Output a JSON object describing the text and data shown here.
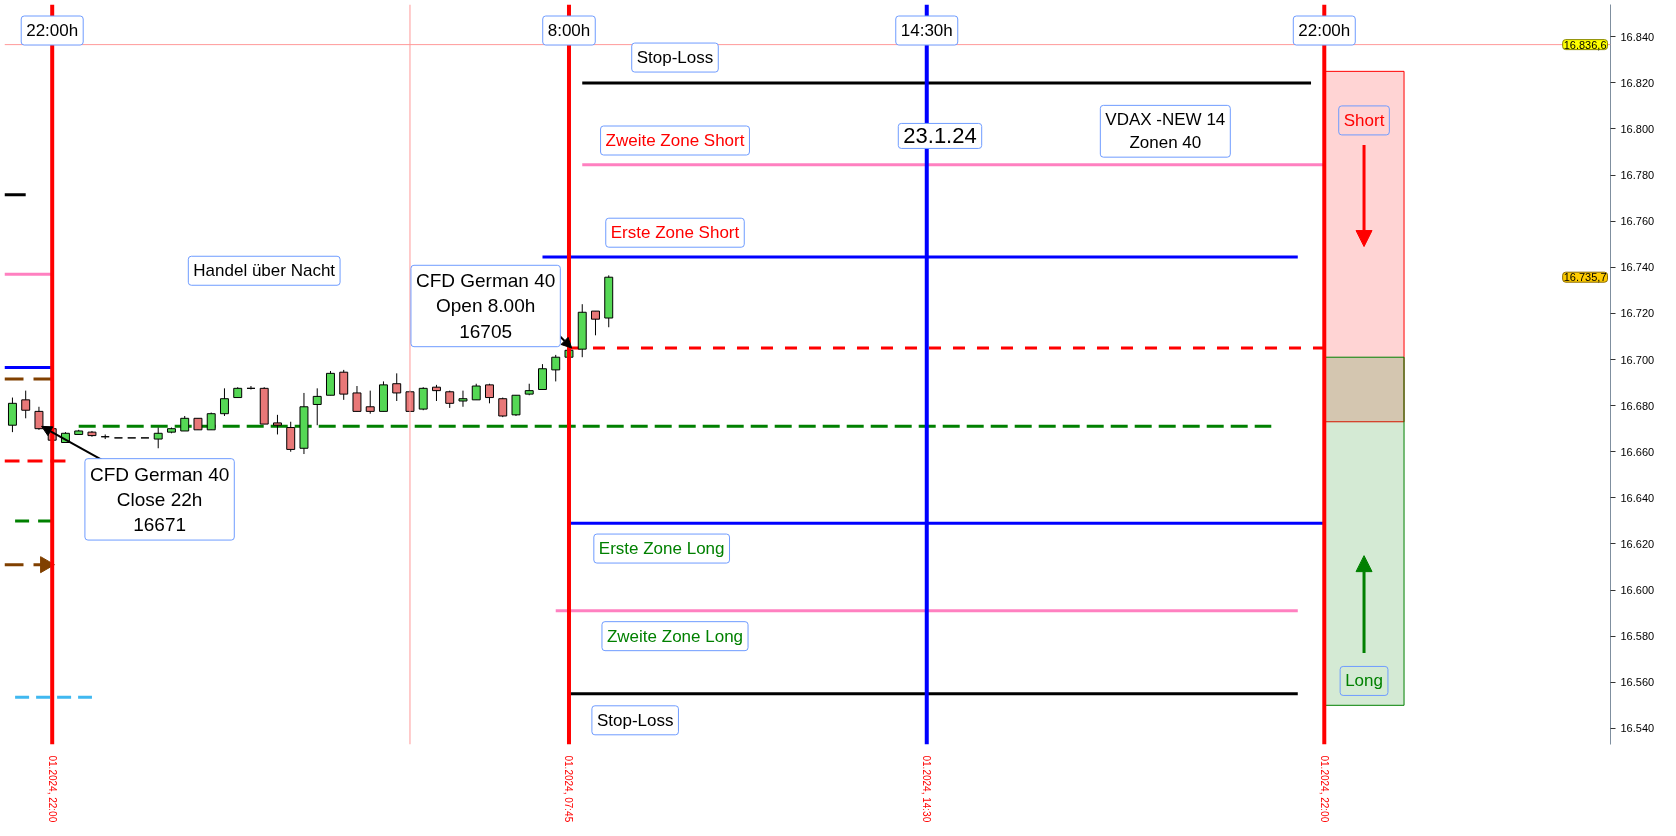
{
  "chart_data": {
    "type": "candlestick",
    "x": [
      "2024-01-22T21:15",
      "2024-01-22T21:30",
      "2024-01-22T21:45",
      "2024-01-22T22:00",
      "2024-01-22T22:15",
      "2024-01-22T22:30",
      "2024-01-22T22:45",
      "2024-01-22T23:00",
      "2024-01-22T23:15",
      "2024-01-22T23:30",
      "2024-01-22T23:45",
      "2024-01-23T00:00",
      "2024-01-23T00:15",
      "2024-01-23T00:30",
      "2024-01-23T00:45",
      "2024-01-23T01:00",
      "2024-01-23T01:15",
      "2024-01-23T01:30",
      "2024-01-23T01:45",
      "2024-01-23T02:00",
      "2024-01-23T02:15",
      "2024-01-23T02:30",
      "2024-01-23T02:45",
      "2024-01-23T03:00",
      "2024-01-23T03:15",
      "2024-01-23T03:30",
      "2024-01-23T03:45",
      "2024-01-23T04:00",
      "2024-01-23T04:15",
      "2024-01-23T04:30",
      "2024-01-23T04:45",
      "2024-01-23T05:00",
      "2024-01-23T05:15",
      "2024-01-23T05:30",
      "2024-01-23T05:45",
      "2024-01-23T06:00",
      "2024-01-23T06:15",
      "2024-01-23T06:30",
      "2024-01-23T06:45",
      "2024-01-23T07:00",
      "2024-01-23T07:15",
      "2024-01-23T07:30",
      "2024-01-23T07:45",
      "2024-01-23T08:00",
      "2024-01-23T08:15",
      "2024-01-23T08:30"
    ],
    "ohlc": [
      [
        16671.5,
        16683.5,
        16668.5,
        16681
      ],
      [
        16682.5,
        16686.5,
        16674.5,
        16678
      ],
      [
        16677.5,
        16679.5,
        16669.5,
        16670
      ],
      [
        16670,
        16670.5,
        16665,
        16665
      ],
      [
        16664,
        16668.5,
        16664,
        16668
      ],
      [
        16667.5,
        16669.5,
        16667.5,
        16669
      ],
      [
        16668.5,
        16669,
        16666.5,
        16667
      ],
      [
        16666.5,
        16667.5,
        16665.5,
        16666.5
      ],
      [
        16666,
        16666,
        16666,
        16666
      ],
      [
        16666,
        16666,
        16666,
        16666
      ],
      [
        16666,
        16666,
        16666,
        16666
      ],
      [
        16665.5,
        16670.5,
        16661.5,
        16668
      ],
      [
        16668.5,
        16670.5,
        16668,
        16670
      ],
      [
        16669,
        16675.5,
        16669,
        16674.5
      ],
      [
        16674.5,
        16674.5,
        16669.5,
        16669.5
      ],
      [
        16669.5,
        16677,
        16669.5,
        16676.5
      ],
      [
        16676.5,
        16687.5,
        16675.5,
        16683
      ],
      [
        16683.5,
        16688,
        16683.5,
        16687.5
      ],
      [
        16687.5,
        16688.5,
        16687,
        16687.5
      ],
      [
        16687.5,
        16688,
        16672,
        16672
      ],
      [
        16672.5,
        16676,
        16667.5,
        16671.5
      ],
      [
        16670.5,
        16673,
        16660,
        16661
      ],
      [
        16661.5,
        16685.5,
        16659,
        16679.5
      ],
      [
        16680.5,
        16687.5,
        16671.5,
        16684
      ],
      [
        16684.5,
        16695,
        16684.5,
        16694
      ],
      [
        16694.5,
        16695.5,
        16682.5,
        16685
      ],
      [
        16685.5,
        16688.5,
        16677.5,
        16677.5
      ],
      [
        16679.5,
        16686.5,
        16676.5,
        16677.5
      ],
      [
        16677.5,
        16690.5,
        16677.5,
        16689
      ],
      [
        16689.5,
        16694,
        16682,
        16685.5
      ],
      [
        16686,
        16686.5,
        16677.5,
        16677.5
      ],
      [
        16678.5,
        16688,
        16678,
        16687.5
      ],
      [
        16688,
        16689,
        16682,
        16686.5
      ],
      [
        16686,
        16686.5,
        16679,
        16681
      ],
      [
        16682,
        16686.5,
        16679.5,
        16683
      ],
      [
        16682.5,
        16689.5,
        16682.5,
        16688.5
      ],
      [
        16689,
        16689.5,
        16681,
        16683.5
      ],
      [
        16683,
        16683.5,
        16675,
        16675.5
      ],
      [
        16676,
        16684.5,
        16675.5,
        16684.5
      ],
      [
        16685,
        16689.5,
        16684.5,
        16686.5
      ],
      [
        16687,
        16698,
        16687,
        16696
      ],
      [
        16695.5,
        16702,
        16690.5,
        16701
      ],
      [
        16701,
        16704.5,
        16701,
        16704
      ],
      [
        16704.5,
        16724,
        16701,
        16720.5
      ],
      [
        16721,
        16721,
        16710.5,
        16717.5
      ],
      [
        16718,
        16736.5,
        16714,
        16735.7
      ]
    ],
    "colors": [
      "#55d855",
      "#e87878",
      "#e87878",
      "#e87878",
      "#55d855",
      "#55d855",
      "#e87878",
      "#000000",
      "#000000",
      "#000000",
      "#000000",
      "#55d855",
      "#55d855",
      "#55d855",
      "#e87878",
      "#55d855",
      "#55d855",
      "#55d855",
      "#000000",
      "#e87878",
      "#e87878",
      "#e87878",
      "#55d855",
      "#55d855",
      "#55d855",
      "#e87878",
      "#e87878",
      "#e87878",
      "#55d855",
      "#e87878",
      "#e87878",
      "#55d855",
      "#e87878",
      "#e87878",
      "#55d855",
      "#55d855",
      "#e87878",
      "#e87878",
      "#55d855",
      "#55d855",
      "#55d855",
      "#55d855",
      "#55d855",
      "#55d855",
      "#e87878",
      "#55d855"
    ],
    "xlim": [
      "2024-01-22T21:06",
      "2024-01-24T03:24"
    ],
    "ylim": [
      16533,
      16854
    ],
    "xticks": [
      {
        "value": "2024-01-22T22:00",
        "label": "01.2024, 22:00"
      },
      {
        "value": "2024-01-23T07:45",
        "label": "01.2024, 07:45"
      },
      {
        "value": "2024-01-23T14:30",
        "label": "01.2024, 14:30"
      },
      {
        "value": "2024-01-23T22:00",
        "label": "01.2024, 22:00"
      }
    ],
    "yticks": [
      {
        "value": 16540,
        "label": "16.540"
      },
      {
        "value": 16560,
        "label": "16.560"
      },
      {
        "value": 16580,
        "label": "16.580"
      },
      {
        "value": 16600,
        "label": "16.600"
      },
      {
        "value": 16620,
        "label": "16.620"
      },
      {
        "value": 16640,
        "label": "16.640"
      },
      {
        "value": 16660,
        "label": "16.660"
      },
      {
        "value": 16680,
        "label": "16.680"
      },
      {
        "value": 16700,
        "label": "16.700"
      },
      {
        "value": 16720,
        "label": "16.720"
      },
      {
        "value": 16740,
        "label": "16.740"
      },
      {
        "value": 16760,
        "label": "16.760"
      },
      {
        "value": 16780,
        "label": "16.780"
      },
      {
        "value": 16800,
        "label": "16.800"
      },
      {
        "value": 16820,
        "label": "16.820"
      },
      {
        "value": 16840,
        "label": "16.840"
      }
    ],
    "grid": false,
    "series": [
      {
        "type": "bar",
        "name": "Short",
        "x": [
          "2024-01-23T22:45"
        ],
        "values": [
          152
        ],
        "base": [
          16673
        ],
        "color": "#ff0000"
      },
      {
        "type": "bar",
        "name": "Long",
        "x": [
          "2024-01-23T22:45"
        ],
        "values": [
          151
        ],
        "base": [
          16550
        ],
        "color": "#008000"
      },
      {
        "type": "line",
        "x": [
          "2024-01-23T08:00",
          "2024-01-23T21:45"
        ],
        "values": [
          16820,
          16820
        ],
        "color": "#000000"
      },
      {
        "type": "line",
        "x": [
          "2024-01-23T08:00",
          "2024-01-23T22:00"
        ],
        "values": [
          16784.5,
          16784.5
        ],
        "color": "#ff80c0"
      },
      {
        "type": "line",
        "x": [
          "2024-01-23T07:15",
          "2024-01-23T21:30"
        ],
        "values": [
          16744.5,
          16744.5
        ],
        "color": "#0000ff"
      },
      {
        "type": "line",
        "x": [
          "2024-01-23T07:45",
          "2024-01-23T22:00"
        ],
        "values": [
          16705,
          16705
        ],
        "color": "#ff0000",
        "line_style": "dashed"
      },
      {
        "type": "line",
        "x": [
          "2024-01-22T22:30",
          "2024-01-23T21:00"
        ],
        "values": [
          16671,
          16671
        ],
        "color": "#008000",
        "line_style": "dashed"
      },
      {
        "type": "line",
        "x": [
          "2024-01-23T07:45",
          "2024-01-23T22:00"
        ],
        "values": [
          16629,
          16629
        ],
        "color": "#0000ff"
      },
      {
        "type": "line",
        "x": [
          "2024-01-23T07:30",
          "2024-01-23T21:30"
        ],
        "values": [
          16591,
          16591
        ],
        "color": "#ff80c0"
      },
      {
        "type": "line",
        "x": [
          "2024-01-23T07:45",
          "2024-01-23T21:30"
        ],
        "values": [
          16555,
          16555
        ],
        "color": "#000000"
      },
      {
        "type": "line",
        "x": [
          "2024-01-22T21:06",
          "2024-01-22T21:30"
        ],
        "values": [
          16771.5,
          16771.5
        ],
        "color": "#000000"
      },
      {
        "type": "line",
        "x": [
          "2024-01-22T21:06",
          "2024-01-22T22:00"
        ],
        "values": [
          16737,
          16737
        ],
        "color": "#ff80c0"
      },
      {
        "type": "line",
        "x": [
          "2024-01-22T21:06",
          "2024-01-22T22:00"
        ],
        "values": [
          16696.5,
          16696.5
        ],
        "color": "#0000ff"
      },
      {
        "type": "line",
        "x": [
          "2024-01-22T21:06",
          "2024-01-22T22:00"
        ],
        "values": [
          16691.5,
          16691.5
        ],
        "color": "#804000",
        "line_style": "dashed"
      },
      {
        "type": "line",
        "x": [
          "2024-01-22T21:06",
          "2024-01-22T22:15"
        ],
        "values": [
          16656,
          16656
        ],
        "color": "#ff0000",
        "line_style": "dashed"
      },
      {
        "type": "line",
        "x": [
          "2024-01-22T21:18",
          "2024-01-22T22:00"
        ],
        "values": [
          16630,
          16630
        ],
        "color": "#008000",
        "line_style": "dashed"
      },
      {
        "type": "line",
        "x": [
          "2024-01-22T21:06",
          "2024-01-22T22:00"
        ],
        "values": [
          16611,
          16611
        ],
        "color": "#804000",
        "line_style": "dashed",
        "marker": "triangle"
      },
      {
        "type": "line",
        "x": [
          "2024-01-22T21:18",
          "2024-01-22T22:45"
        ],
        "values": [
          16553.5,
          16553.5
        ],
        "color": "#40b8f0",
        "line_style": "dashed"
      }
    ],
    "ref_lines": [
      {
        "axis": "x",
        "value": "2024-01-22T22:00",
        "label": "22:00h",
        "color": "#ff0000"
      },
      {
        "axis": "x",
        "value": "2024-01-23T07:45",
        "color": "#ff0000"
      },
      {
        "axis": "x",
        "value": "2024-01-23T14:30",
        "label": "14:30h",
        "color": "#0000ff"
      },
      {
        "axis": "x",
        "value": "2024-01-23T22:00",
        "label": "22:00h",
        "color": "#ff0000"
      },
      {
        "axis": "x",
        "value": "2024-01-23T04:45",
        "color": "#ff9999"
      },
      {
        "axis": "y",
        "value": 16836.6,
        "label": "16.836,6",
        "color": "#ff9999"
      }
    ],
    "annotations": [
      "Stop-Loss",
      "Zweite Zone Short",
      "Erste Zone Short",
      "23.1.24",
      "VDAX -NEW 14\nZonen 40",
      "Handel über Nacht",
      {
        "text": "CFD German 40\nOpen 8.00h\n16705",
        "x": "2024-01-23T07:48",
        "y": 16705
      },
      {
        "text": "CFD German 40\nClose 22h\n16671",
        "x": "2024-01-22T21:48",
        "y": 16671
      },
      "Erste Zone Long",
      "Zweite Zone Long",
      "Stop-Loss",
      "16.735,7",
      "8:00h"
    ]
  }
}
